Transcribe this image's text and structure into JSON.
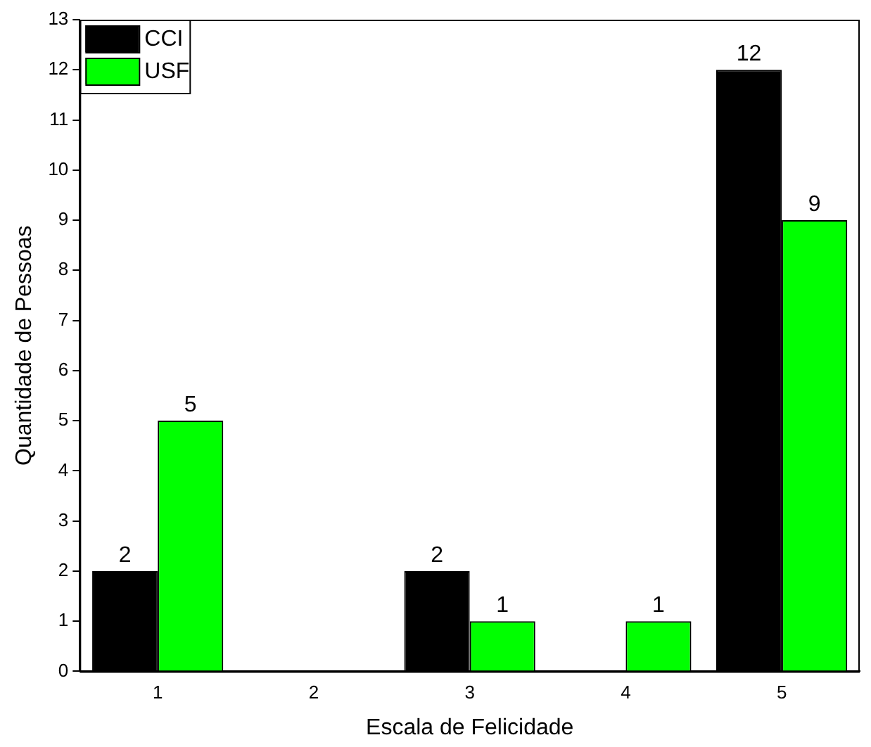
{
  "chart_data": {
    "type": "bar",
    "xlabel": "Escala de Felicidade",
    "ylabel": "Quantidade de Pessoas",
    "categories": [
      "1",
      "2",
      "3",
      "4",
      "5"
    ],
    "series": [
      {
        "name": "CCI",
        "color": "#000000",
        "values": [
          2,
          0,
          2,
          0,
          12
        ],
        "value_labels": [
          "2",
          null,
          "2",
          null,
          "12"
        ]
      },
      {
        "name": "USF",
        "color": "#00ff00",
        "values": [
          5,
          0,
          1,
          1,
          9
        ],
        "value_labels": [
          "5",
          null,
          "1",
          "1",
          "9"
        ]
      }
    ],
    "ylim": [
      0,
      13
    ],
    "yticks": [
      0,
      1,
      2,
      3,
      4,
      5,
      6,
      7,
      8,
      9,
      10,
      11,
      12,
      13
    ],
    "grid": false,
    "legend": "top left"
  }
}
